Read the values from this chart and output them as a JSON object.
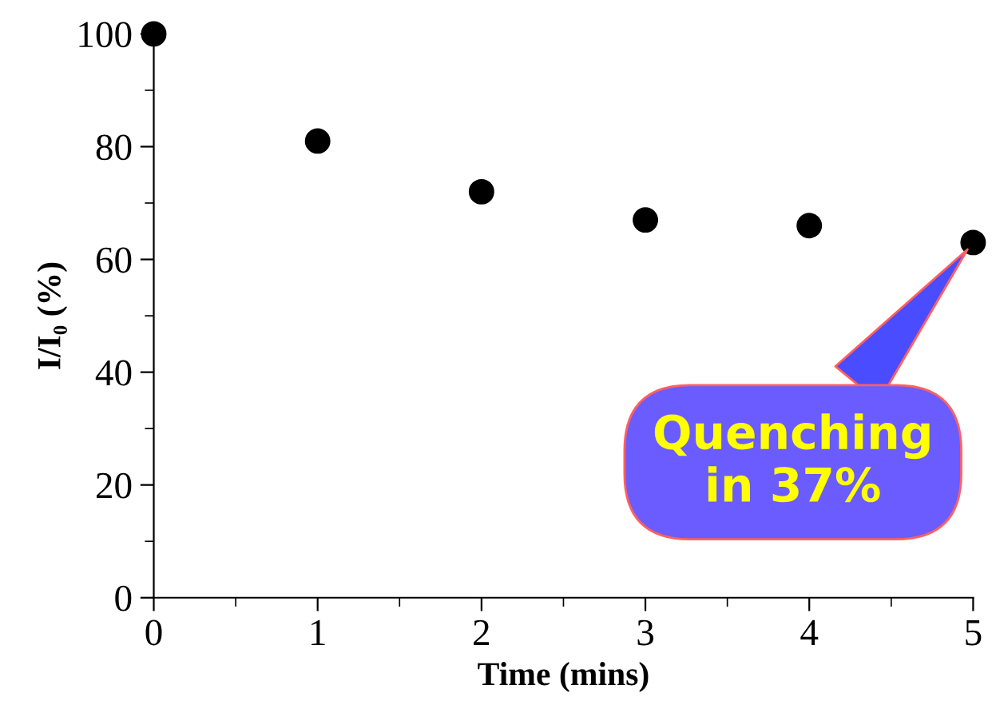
{
  "chart_data": {
    "type": "scatter",
    "xlabel": "Time (mins)",
    "ylabel": "I/I₀ (%)",
    "x": [
      0,
      1,
      2,
      3,
      4,
      5
    ],
    "series": [
      {
        "color": "#000000",
        "values": [
          100,
          81,
          72,
          67,
          66,
          63
        ]
      }
    ],
    "xlim": [
      0,
      5
    ],
    "ylim": [
      0,
      100
    ],
    "xticks": [
      0,
      {
        "value": 0.5,
        "label": null
      },
      1,
      {
        "value": 1.5,
        "label": null
      },
      2,
      {
        "value": 2.5,
        "label": null
      },
      3,
      {
        "value": 3.5,
        "label": null
      },
      4,
      {
        "value": 4.5,
        "label": null
      },
      5
    ],
    "yticks": [
      0,
      {
        "value": 10,
        "label": null
      },
      20,
      {
        "value": 30,
        "label": null
      },
      40,
      {
        "value": 50,
        "label": null
      },
      60,
      {
        "value": 70,
        "label": null
      },
      80,
      {
        "value": 90,
        "label": null
      },
      100
    ],
    "marker": "circle",
    "grid": false,
    "legend": false,
    "annotations": [
      "Quenching\nin 37%"
    ]
  }
}
